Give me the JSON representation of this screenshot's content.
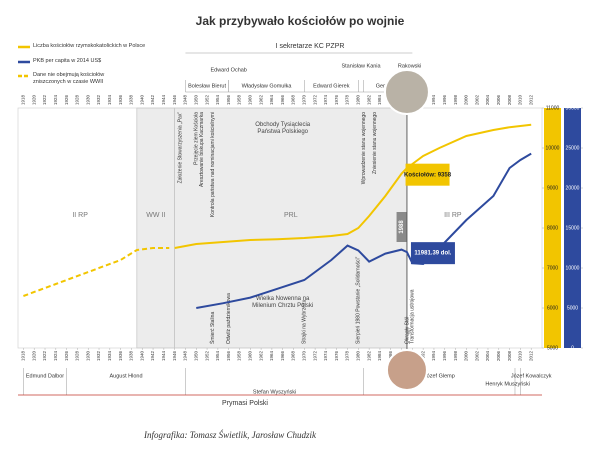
{
  "chart_data": {
    "type": "line",
    "title": "Jak przybywało kościołów po wojnie",
    "credit": "Infografika: Tomasz Świetlik, Jarosław Chudzik",
    "x": [
      1918,
      1921,
      1924,
      1927,
      1930,
      1933,
      1936,
      1939,
      1942,
      1945,
      1946,
      1950,
      1955,
      1960,
      1965,
      1970,
      1975,
      1978,
      1980,
      1982,
      1985,
      1988,
      1989,
      1990,
      1992,
      1995,
      2000,
      2005,
      2008,
      2010,
      2012
    ],
    "xlim": [
      1917,
      2014
    ],
    "xticks": [
      1918,
      1920,
      1922,
      1924,
      1926,
      1928,
      1930,
      1932,
      1934,
      1936,
      1938,
      1940,
      1942,
      1944,
      1946,
      1948,
      1950,
      1952,
      1954,
      1956,
      1958,
      1960,
      1962,
      1964,
      1966,
      1968,
      1970,
      1972,
      1974,
      1976,
      1978,
      1980,
      1982,
      1984,
      1986,
      1988,
      1990,
      1992,
      1994,
      1996,
      1998,
      2000,
      2002,
      2004,
      2006,
      2008,
      2010,
      2012
    ],
    "ylim": [
      5000,
      11000
    ],
    "yticks": [
      5000,
      6000,
      7000,
      8000,
      9000,
      10000,
      11000
    ],
    "y2lim": [
      0,
      30000
    ],
    "y2ticks": [
      0,
      5000,
      10000,
      15000,
      20000,
      25000,
      30000
    ],
    "series": [
      {
        "name": "Liczba kościołów rzymskokatolickich w Polsce",
        "color": "#f2c500",
        "dashed": false,
        "values": [
          null,
          null,
          null,
          null,
          null,
          null,
          null,
          null,
          null,
          null,
          7500,
          7600,
          7650,
          7700,
          7720,
          7750,
          7800,
          7850,
          8000,
          8300,
          8800,
          9358,
          9500,
          9600,
          9800,
          10000,
          10300,
          10450,
          10520,
          10550,
          10580
        ],
        "value_labels": [
          null,
          null,
          null,
          null,
          null,
          null,
          null,
          null,
          null,
          null,
          null,
          null,
          null,
          null,
          null,
          null,
          null,
          null,
          null,
          null,
          null,
          "Kościołów: 9358",
          null,
          null,
          null,
          null,
          null,
          null,
          null,
          null,
          null
        ]
      },
      {
        "name": "PKB per capita w 2014 US$",
        "color": "#2e4a9e",
        "dashed": false,
        "axis": "y2",
        "values": [
          null,
          null,
          null,
          null,
          null,
          null,
          null,
          null,
          null,
          null,
          null,
          5000,
          5600,
          6300,
          7400,
          8500,
          11000,
          12800,
          12200,
          10800,
          11800,
          12300,
          11981.39,
          10600,
          10500,
          12500,
          16000,
          19000,
          22500,
          23500,
          24300
        ],
        "value_labels": [
          null,
          null,
          null,
          null,
          null,
          null,
          null,
          null,
          null,
          null,
          null,
          null,
          null,
          null,
          null,
          null,
          null,
          null,
          null,
          null,
          null,
          null,
          "11981.39 dol.",
          null,
          null,
          null,
          null,
          null,
          null,
          null,
          null
        ]
      },
      {
        "name": "Dane nie obejmują kościołów zniszczonych w czasie WWII",
        "color": "#f2c500",
        "dashed": true,
        "values": [
          6300,
          6450,
          6600,
          6750,
          6900,
          7050,
          7200,
          7450,
          7500,
          7500,
          null,
          null,
          null,
          null,
          null,
          null,
          null,
          null,
          null,
          null,
          null,
          null,
          null,
          null,
          null,
          null,
          null,
          null,
          null,
          null,
          null
        ]
      }
    ],
    "eras": [
      {
        "label": "II RP",
        "from": 1918,
        "to": 1939,
        "shaded": false
      },
      {
        "label": "WW II",
        "from": 1939,
        "to": 1946,
        "shaded": true
      },
      {
        "label": "PRL",
        "from": 1946,
        "to": 1989,
        "shaded": true
      },
      {
        "label": "III RP",
        "from": 1989,
        "to": 2014,
        "shaded": false
      }
    ],
    "marker": {
      "label": "1988",
      "year": 1988
    },
    "secretaries_title": "I sekretarze KC PZPR",
    "secretaries": [
      {
        "name": "Bolesław Bierut",
        "from": 1948,
        "to": 1956
      },
      {
        "name": "Edward Ochab",
        "from": 1956,
        "to": 1956
      },
      {
        "name": "Władysław Gomułka",
        "from": 1956,
        "to": 1970
      },
      {
        "name": "Edward Gierek",
        "from": 1970,
        "to": 1980
      },
      {
        "name": "Stanisław Kania",
        "from": 1980,
        "to": 1981
      },
      {
        "name": "Gen. Ja",
        "from": 1981,
        "to": 1989
      },
      {
        "name": "Rakowski",
        "from": 1989,
        "to": 1990
      }
    ],
    "primates_title": "Prymasi Polski",
    "primates": [
      {
        "name": "Edmund Dalbor",
        "from": 1918,
        "to": 1926
      },
      {
        "name": "August Hlond",
        "from": 1926,
        "to": 1948
      },
      {
        "name": "Stefan Wyszyński",
        "from": 1948,
        "to": 1981
      },
      {
        "name": "Józef Glemp",
        "from": 1981,
        "to": 2009
      },
      {
        "name": "Henryk Muszyński",
        "from": 2009,
        "to": 2010
      },
      {
        "name": "Józef Kowalczyk",
        "from": 2010,
        "to": 2014
      }
    ],
    "events": [
      {
        "year": 1947,
        "text": "Założenie Stowarzyszenia „Pax”",
        "side": "top",
        "rotated": true
      },
      {
        "year": 1950,
        "text": "Przejęcie ziem Kościoła",
        "side": "top",
        "rotated": true
      },
      {
        "year": 1951,
        "text": "Aresztowanie biskupa Kaczmarka",
        "side": "top",
        "rotated": true
      },
      {
        "year": 1953,
        "text": "Kontrola państwa nad nominacjami kościelnymi",
        "side": "top",
        "rotated": true
      },
      {
        "year": 1966,
        "text": "Obchody Tysiąclecia Państwa Polskiego",
        "side": "top",
        "rotated": false
      },
      {
        "year": 1981,
        "text": "Wprowadzenie stanu wojennego",
        "side": "top",
        "rotated": true
      },
      {
        "year": 1983,
        "text": "Zniesienie stanu wojennego",
        "side": "top",
        "rotated": true
      },
      {
        "year": 1953,
        "text": "Śmierć Stalina",
        "side": "bottom",
        "rotated": true
      },
      {
        "year": 1956,
        "text": "Odwilż październikowa",
        "side": "bottom",
        "rotated": true
      },
      {
        "year": 1966,
        "text": "Wielka Nowenna na Milenium Chrztu Polski",
        "side": "bottom",
        "rotated": false
      },
      {
        "year": 1970,
        "text": "Strajki na Wybrzeżu",
        "side": "bottom",
        "rotated": true
      },
      {
        "year": 1980,
        "text": "Sierpień 1980 Powstanie „Solidarności”",
        "side": "bottom",
        "rotated": true
      },
      {
        "year": 1989,
        "text": "Okrągły Stół",
        "side": "bottom",
        "rotated": true
      },
      {
        "year": 1990,
        "text": "Transformacja ustrojowa",
        "side": "bottom",
        "rotated": true
      }
    ]
  }
}
